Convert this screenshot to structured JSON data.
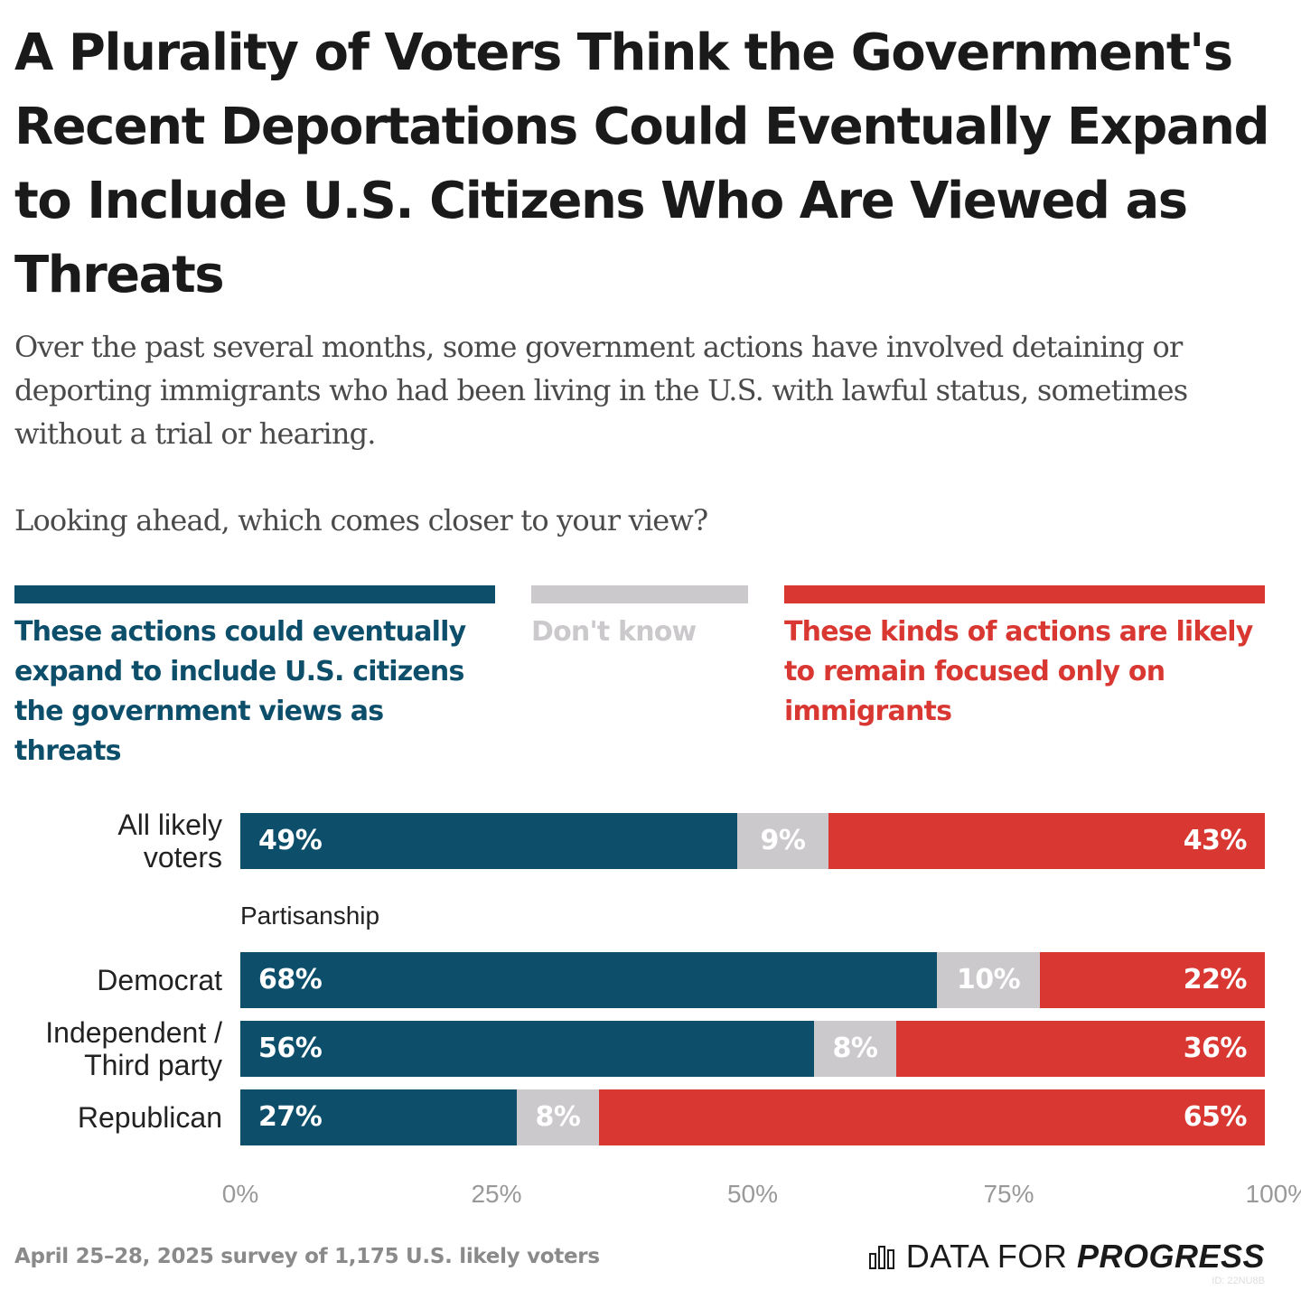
{
  "title": "A Plurality of Voters Think the Government's Recent Deportations Could Eventually Expand to Include U.S. Citizens Who Are Viewed as Threats",
  "subtitle": "Over the past several months, some government actions have involved detaining or deporting immigrants who had been living in the U.S. with lawful status, sometimes without a trial or hearing.",
  "question": "Looking ahead, which comes closer to your view?",
  "source": "April 25–28, 2025 survey of 1,175 U.S. likely voters",
  "logo": {
    "regular": "DATA FOR",
    "bold": "PROGRESS",
    "icon": "bar-chart-icon"
  },
  "chart_id": "ID: 22NU8B",
  "colors": {
    "expand": "#0d4f6b",
    "dont_know": "#ccc9cc",
    "remain": "#d93832"
  },
  "chart_data": {
    "type": "bar",
    "orientation": "horizontal",
    "stacked": true,
    "categories": [
      "All likely voters",
      "Democrat",
      "Independent / Third party",
      "Republican"
    ],
    "groups": [
      {
        "label": "",
        "categories": [
          "All likely voters"
        ]
      },
      {
        "label": "Partisanship",
        "categories": [
          "Democrat",
          "Independent / Third party",
          "Republican"
        ]
      }
    ],
    "series": [
      {
        "name": "These actions could eventually expand to include U.S. citizens the government views as threats",
        "values": [
          49,
          68,
          56,
          27
        ],
        "labels": [
          "49%",
          "68%",
          "56%",
          "27%"
        ]
      },
      {
        "name": "Don't know",
        "values": [
          9,
          10,
          8,
          8
        ],
        "labels": [
          "9%",
          "10%",
          "8%",
          "8%"
        ]
      },
      {
        "name": "These kinds of actions are likely to remain focused only on immigrants",
        "values": [
          43,
          22,
          36,
          65
        ],
        "labels": [
          "43%",
          "22%",
          "36%",
          "65%"
        ]
      }
    ],
    "xlim": [
      0,
      100
    ],
    "xticks": [
      "0%",
      "25%",
      "50%",
      "75%",
      "100%"
    ],
    "xtick_values": [
      0,
      25,
      50,
      75,
      100
    ],
    "legend_position": "top"
  }
}
